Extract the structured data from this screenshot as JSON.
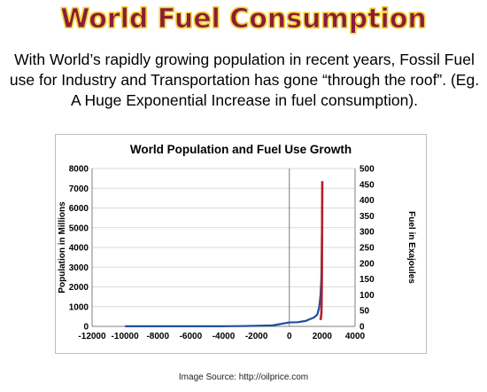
{
  "page": {
    "title": "World Fuel Consumption",
    "intro_text": "With World’s rapidly growing population in recent years, Fossil Fuel use for Industry and Transportation has gone “through the roof”.  (Eg. A Huge Exponential Increase in fuel consumption).",
    "source_caption": "Image Source: http://oilprice.com"
  },
  "colors": {
    "title_fill": "#8b1c3a",
    "title_outline": "#f2d43a",
    "population_line": "#1f4e9c",
    "fuel_line": "#b3202a",
    "grid": "#d9d9d9",
    "zero_line": "#7f7f7f"
  },
  "chart_data": {
    "type": "line",
    "title": "World Population and Fuel Use Growth",
    "xlabel": "",
    "ylabel": "Population in Millions",
    "y2label": "Fuel in Exajoules",
    "xlim": [
      -12000,
      4000
    ],
    "ylim": [
      0,
      8000
    ],
    "y2lim": [
      0,
      500
    ],
    "x_ticks": [
      "-12000",
      "-10000",
      "-8000",
      "-6000",
      "-4000",
      "-2000",
      "0",
      "2000",
      "4000"
    ],
    "x_tick_values": [
      -12000,
      -10000,
      -8000,
      -6000,
      -4000,
      -2000,
      0,
      2000,
      4000
    ],
    "y_ticks": [
      "0",
      "1000",
      "2000",
      "3000",
      "4000",
      "5000",
      "6000",
      "7000",
      "8000"
    ],
    "y_tick_values": [
      0,
      1000,
      2000,
      3000,
      4000,
      5000,
      6000,
      7000,
      8000
    ],
    "y2_ticks": [
      "0",
      "50",
      "100",
      "150",
      "200",
      "250",
      "300",
      "350",
      "400",
      "450",
      "500"
    ],
    "y2_tick_values": [
      0,
      50,
      100,
      150,
      200,
      250,
      300,
      350,
      400,
      450,
      500
    ],
    "grid": true,
    "legend": "none",
    "series": [
      {
        "axis": "left",
        "x": [
          -10000,
          -8000,
          -6000,
          -4000,
          -3000,
          -2000,
          -1000,
          0,
          500,
          1000,
          1200,
          1500,
          1700,
          1800,
          1850,
          1900,
          1950,
          1970,
          1990,
          2000
        ],
        "values": [
          4,
          5,
          7,
          7,
          14,
          27,
          50,
          200,
          210,
          275,
          350,
          450,
          600,
          900,
          1200,
          1600,
          2500,
          3700,
          5300,
          6100
        ]
      },
      {
        "axis": "right",
        "x": [
          1900,
          1950,
          1960,
          1970,
          1980,
          1990,
          2000,
          2005
        ],
        "values": [
          20,
          40,
          60,
          100,
          150,
          250,
          380,
          460
        ]
      }
    ]
  }
}
